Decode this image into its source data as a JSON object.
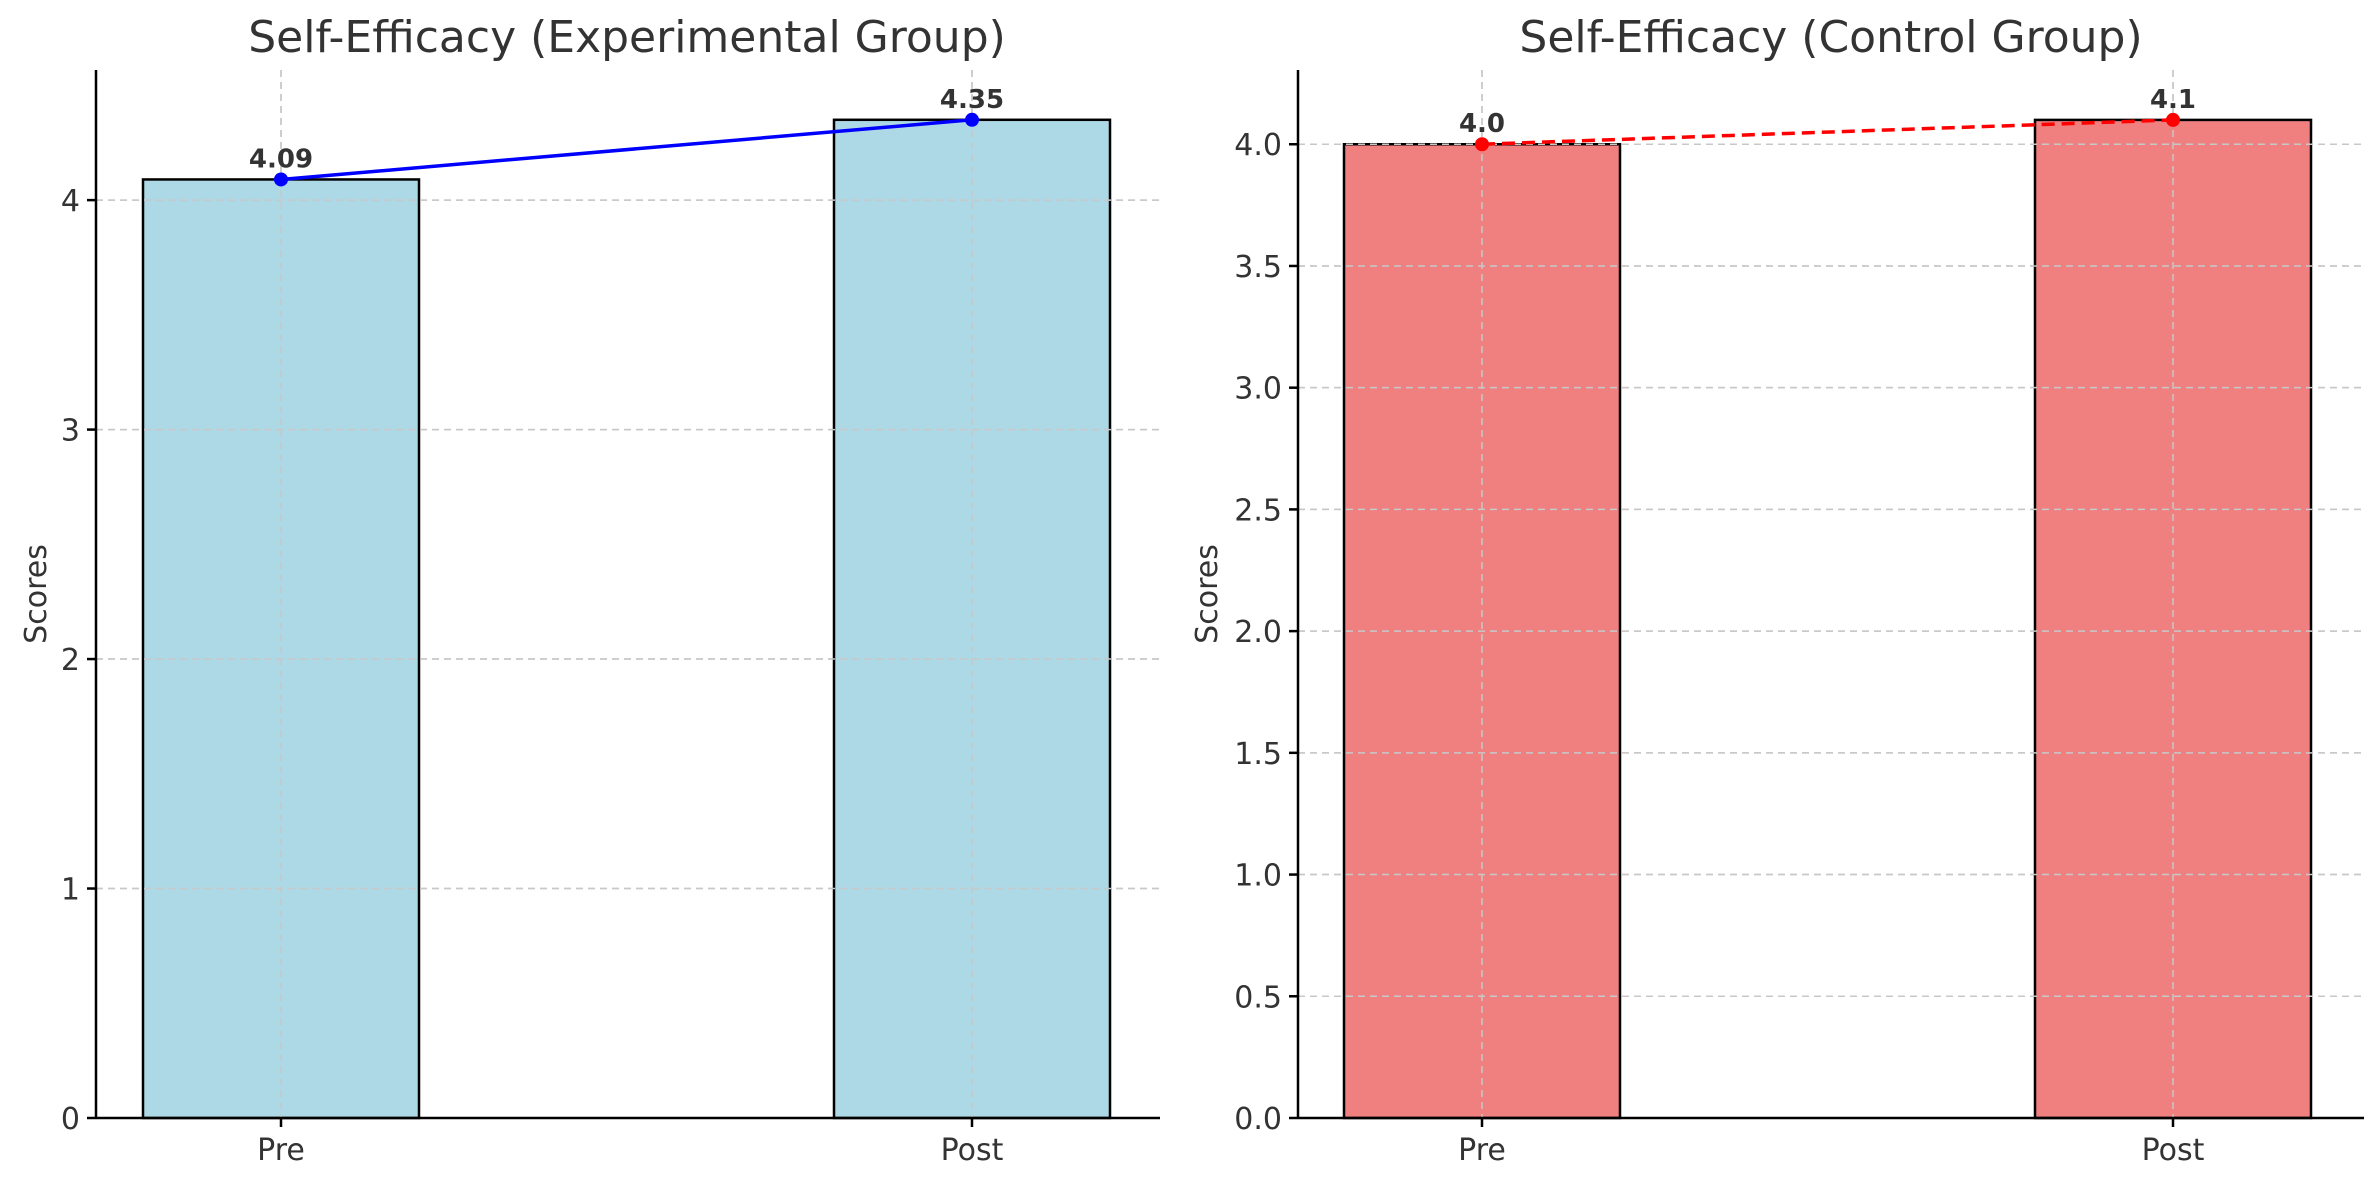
{
  "chart_data": [
    {
      "type": "bar",
      "title": "Self-Efficacy (Experimental Group)",
      "ylabel": "Scores",
      "xlabel": "",
      "categories": [
        "Pre",
        "Post"
      ],
      "values": [
        4.09,
        4.35
      ],
      "value_labels": [
        "4.09",
        "4.35"
      ],
      "ylim": [
        0,
        4.567
      ],
      "yticks": [
        0,
        1,
        2,
        3,
        4
      ],
      "ytick_labels": [
        "0",
        "1",
        "2",
        "3",
        "4"
      ],
      "grid": true,
      "bar_color": "#add8e6",
      "line_color": "#0000ff",
      "line_style": "solid"
    },
    {
      "type": "bar",
      "title": "Self-Efficacy (Control Group)",
      "ylabel": "Scores",
      "xlabel": "",
      "categories": [
        "Pre",
        "Post"
      ],
      "values": [
        4.0,
        4.1
      ],
      "value_labels": [
        "4.0",
        "4.1"
      ],
      "ylim": [
        0,
        4.305
      ],
      "yticks": [
        0,
        0.5,
        1.0,
        1.5,
        2.0,
        2.5,
        3.0,
        3.5,
        4.0
      ],
      "ytick_labels": [
        "0.0",
        "0.5",
        "1.0",
        "1.5",
        "2.0",
        "2.5",
        "3.0",
        "3.5",
        "4.0"
      ],
      "grid": true,
      "bar_color": "#f08080",
      "line_color": "#ff0000",
      "line_style": "dashed"
    }
  ]
}
